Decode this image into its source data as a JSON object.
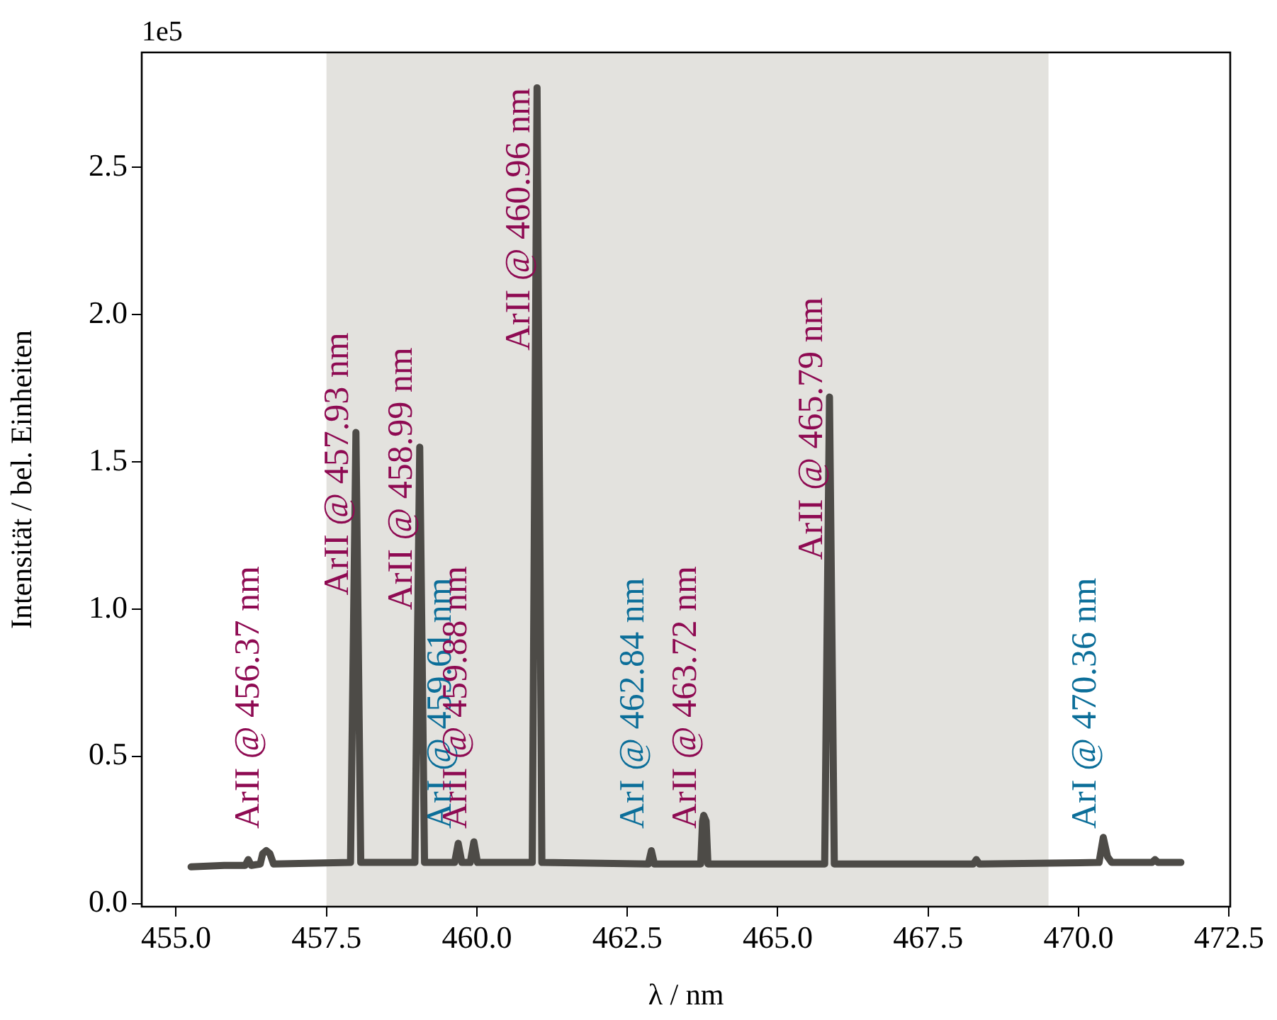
{
  "chart_data": {
    "type": "line",
    "xlabel": "λ / nm",
    "ylabel": "Intensität / bel. Einheiten",
    "series": [
      {
        "color": "#4d4b47",
        "x": [
          455.25,
          455.8,
          456.15,
          456.2,
          456.25,
          456.4,
          456.44,
          456.5,
          456.56,
          456.62,
          457.9,
          457.99,
          458.07,
          458.97,
          459.05,
          459.13,
          459.63,
          459.69,
          459.75,
          459.89,
          459.95,
          460.01,
          460.92,
          461.0,
          461.08,
          462.85,
          462.9,
          462.95,
          463.72,
          463.75,
          463.77,
          463.81,
          463.84,
          465.78,
          465.86,
          465.94,
          468.25,
          468.3,
          468.35,
          470.34,
          470.41,
          470.48,
          470.55,
          471.22,
          471.27,
          471.32,
          471.7
        ],
        "values": [
          0.125,
          0.13,
          0.13,
          0.15,
          0.13,
          0.135,
          0.17,
          0.18,
          0.17,
          0.135,
          0.14,
          1.6,
          0.14,
          0.14,
          1.55,
          0.14,
          0.14,
          0.205,
          0.14,
          0.14,
          0.21,
          0.14,
          0.14,
          2.77,
          0.14,
          0.135,
          0.18,
          0.135,
          0.135,
          0.28,
          0.3,
          0.28,
          0.135,
          0.135,
          1.72,
          0.135,
          0.135,
          0.15,
          0.135,
          0.14,
          0.225,
          0.16,
          0.14,
          0.14,
          0.15,
          0.14,
          0.14
        ]
      }
    ],
    "xlim": [
      454.43,
      472.52
    ],
    "ylim": [
      -0.01,
      2.89
    ],
    "xticks": [
      {
        "value": 455,
        "label": "455.0"
      },
      {
        "value": 457.5,
        "label": "457.5"
      },
      {
        "value": 460,
        "label": "460.0"
      },
      {
        "value": 462.5,
        "label": "462.5"
      },
      {
        "value": 465,
        "label": "465.0"
      },
      {
        "value": 467.5,
        "label": "467.5"
      },
      {
        "value": 470,
        "label": "470.0"
      },
      {
        "value": 472.5,
        "label": "472.5"
      }
    ],
    "yticks": [
      {
        "value": 0,
        "label": "0.0"
      },
      0.5,
      {
        "value": 1,
        "label": "1.0"
      },
      1.5,
      {
        "value": 2,
        "label": "2.0"
      },
      2.5
    ],
    "bands": [
      {
        "axis": "x",
        "from": 457.5,
        "to": 469.5,
        "color": "#e3e2de"
      }
    ],
    "grid": false,
    "legend": false,
    "marker": "none",
    "line_style": "solid",
    "annotations": [
      "1e5",
      {
        "text": "ArII @ 456.37 nm",
        "x": 456.5,
        "y": 0.18
      },
      {
        "text": "ArII @ 457.93 nm",
        "x": 457.99,
        "y": 1.6
      },
      {
        "text": "ArII @ 458.99 nm",
        "x": 459.05,
        "y": 1.55
      },
      {
        "text": "ArI @ 459.61 nm",
        "x": 459.69,
        "y": 0.205
      },
      {
        "text": "ArII @ 459.88 nm",
        "x": 459.95,
        "y": 0.21
      },
      {
        "text": "ArII @ 460.96 nm",
        "x": 461.0,
        "y": 2.77
      },
      {
        "text": "ArI @ 462.84 nm",
        "x": 462.9,
        "y": 0.18
      },
      {
        "text": "ArII @ 463.72 nm",
        "x": 463.77,
        "y": 0.3
      },
      {
        "text": "ArII @ 465.79 nm",
        "x": 465.86,
        "y": 1.72
      },
      {
        "text": "ArI @ 470.36 nm",
        "x": 470.41,
        "y": 0.225
      }
    ]
  }
}
